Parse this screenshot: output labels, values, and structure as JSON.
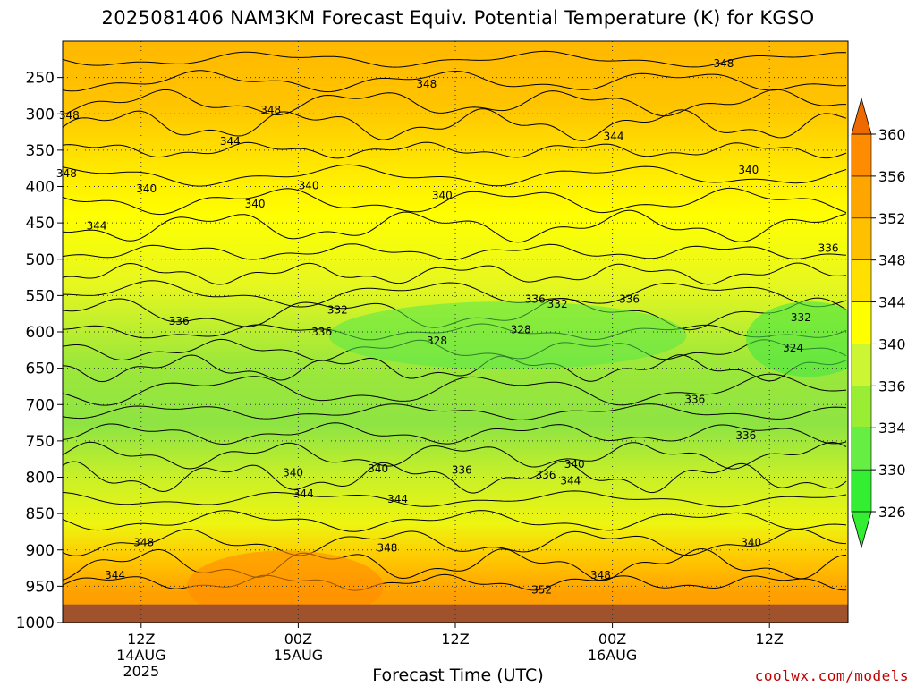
{
  "header": {
    "title": "2025081406 NAM3KM Forecast Equiv. Potential Temperature (K) for KGSO",
    "credit": "coolwx.com/models"
  },
  "chart_data": {
    "type": "heatmap",
    "title": "2025081406 NAM3KM Forecast Equiv. Potential Temperature (K) for KGSO",
    "xlabel": "Forecast Time (UTC)",
    "ylabel": "",
    "y_axis": {
      "ticks": [
        250,
        300,
        350,
        400,
        450,
        500,
        550,
        600,
        650,
        700,
        750,
        800,
        850,
        900,
        950,
        1000
      ],
      "range": [
        1000,
        200
      ],
      "reversed": true
    },
    "x_axis": {
      "ticks": [
        {
          "label": "12Z",
          "sub1": "14AUG",
          "sub2": "2025",
          "hour": 6
        },
        {
          "label": "00Z",
          "sub1": "15AUG",
          "sub2": "",
          "hour": 18
        },
        {
          "label": "12Z",
          "sub1": "",
          "sub2": "",
          "hour": 30
        },
        {
          "label": "00Z",
          "sub1": "16AUG",
          "sub2": "",
          "hour": 42
        },
        {
          "label": "12Z",
          "sub1": "",
          "sub2": "",
          "hour": 54
        }
      ],
      "range_hours": [
        0,
        60
      ]
    },
    "grid": true,
    "colorbar": {
      "levels": [
        326,
        330,
        334,
        336,
        340,
        344,
        348,
        352,
        356,
        360
      ],
      "colors": [
        "#33ee33",
        "#66ee44",
        "#99ee33",
        "#ccf533",
        "#ffff00",
        "#ffe000",
        "#ffc000",
        "#ffa500",
        "#ff8c00",
        "#ee6a00"
      ],
      "extend": "both"
    },
    "contour_labels": [
      {
        "text": "348",
        "hour": 0.5,
        "p": 302
      },
      {
        "text": "348",
        "hour": 0.3,
        "p": 382
      },
      {
        "text": "344",
        "hour": 2.6,
        "p": 454
      },
      {
        "text": "340",
        "hour": 6.4,
        "p": 403
      },
      {
        "text": "344",
        "hour": 12.8,
        "p": 338
      },
      {
        "text": "348",
        "hour": 15.9,
        "p": 295
      },
      {
        "text": "340",
        "hour": 14.7,
        "p": 424
      },
      {
        "text": "340",
        "hour": 18.8,
        "p": 399
      },
      {
        "text": "348",
        "hour": 27.8,
        "p": 259
      },
      {
        "text": "340",
        "hour": 29.0,
        "p": 412
      },
      {
        "text": "344",
        "hour": 42.1,
        "p": 331
      },
      {
        "text": "348",
        "hour": 50.5,
        "p": 231
      },
      {
        "text": "340",
        "hour": 52.4,
        "p": 377
      },
      {
        "text": "336",
        "hour": 8.9,
        "p": 585
      },
      {
        "text": "332",
        "hour": 21.0,
        "p": 570
      },
      {
        "text": "336",
        "hour": 19.8,
        "p": 600
      },
      {
        "text": "336",
        "hour": 36.1,
        "p": 555
      },
      {
        "text": "332",
        "hour": 37.8,
        "p": 562
      },
      {
        "text": "336",
        "hour": 43.3,
        "p": 555
      },
      {
        "text": "328",
        "hour": 28.6,
        "p": 612
      },
      {
        "text": "328",
        "hour": 35.0,
        "p": 597
      },
      {
        "text": "336",
        "hour": 58.5,
        "p": 485
      },
      {
        "text": "332",
        "hour": 56.4,
        "p": 580
      },
      {
        "text": "324",
        "hour": 55.8,
        "p": 622
      },
      {
        "text": "336",
        "hour": 48.3,
        "p": 693
      },
      {
        "text": "336",
        "hour": 52.2,
        "p": 743
      },
      {
        "text": "340",
        "hour": 17.6,
        "p": 794
      },
      {
        "text": "344",
        "hour": 18.4,
        "p": 823
      },
      {
        "text": "340",
        "hour": 24.1,
        "p": 788
      },
      {
        "text": "336",
        "hour": 30.5,
        "p": 790
      },
      {
        "text": "336",
        "hour": 36.9,
        "p": 797
      },
      {
        "text": "340",
        "hour": 39.1,
        "p": 782
      },
      {
        "text": "344",
        "hour": 38.8,
        "p": 805
      },
      {
        "text": "344",
        "hour": 25.6,
        "p": 830
      },
      {
        "text": "348",
        "hour": 6.2,
        "p": 890
      },
      {
        "text": "344",
        "hour": 4.0,
        "p": 935
      },
      {
        "text": "348",
        "hour": 24.8,
        "p": 897
      },
      {
        "text": "352",
        "hour": 36.6,
        "p": 955
      },
      {
        "text": "348",
        "hour": 41.1,
        "p": 935
      },
      {
        "text": "340",
        "hour": 52.6,
        "p": 890
      }
    ]
  }
}
